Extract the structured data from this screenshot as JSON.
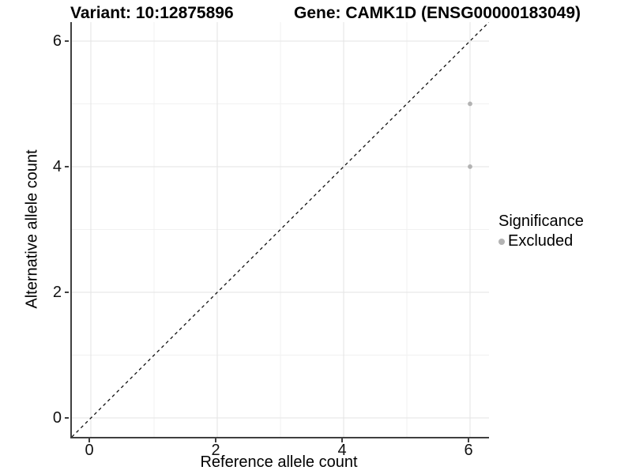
{
  "chart_data": {
    "type": "scatter",
    "title_left": "Variant: 10:12875896",
    "title_right": "Gene: CAMK1D (ENSG00000183049)",
    "xlabel": "Reference allele count",
    "ylabel": "Alternative allele count",
    "xlim": [
      -0.3,
      6.3
    ],
    "ylim": [
      -0.3,
      6.3
    ],
    "x_major_ticks": [
      0,
      2,
      4,
      6
    ],
    "y_major_ticks": [
      0,
      2,
      4,
      6
    ],
    "x_minor_gridlines": [
      1,
      3,
      5
    ],
    "y_minor_gridlines": [
      1,
      3,
      5
    ],
    "grid": "major and minor gridlines on white panel",
    "reference_line": {
      "kind": "identity y=x",
      "style": "dashed",
      "color": "#111111"
    },
    "series": [
      {
        "name": "Excluded",
        "color": "#b3b3b3",
        "points": [
          {
            "x": 6,
            "y": 5
          },
          {
            "x": 6,
            "y": 4
          }
        ]
      }
    ],
    "legend": {
      "title": "Significance",
      "position": "right",
      "items": [
        {
          "label": "Excluded",
          "color": "#b3b3b3"
        }
      ]
    },
    "colors": {
      "major_grid": "#e3e3e3",
      "minor_grid": "#f1f1f1",
      "axis_line": "#3f3f3f",
      "point": "#b3b3b3"
    }
  }
}
